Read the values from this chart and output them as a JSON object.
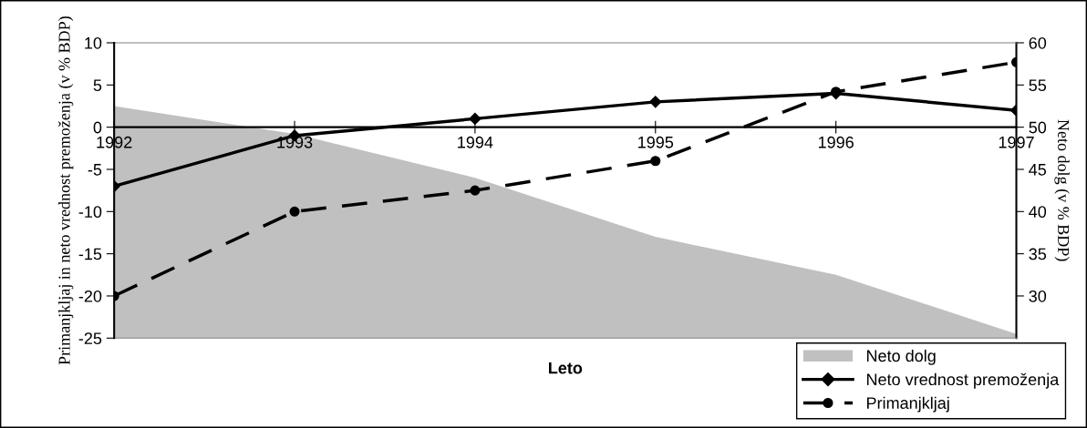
{
  "chart_data": {
    "type": "line",
    "xlabel": "Leto",
    "ylabel": "Primanjkljaj in neto vrednost premoženja (v % BDP)",
    "y2label": "Neto dolg (v % BDP)",
    "categories": [
      "1992",
      "1993",
      "1994",
      "1995",
      "1996",
      "1997"
    ],
    "series": [
      {
        "name": "Neto dolg",
        "type": "area",
        "axis": "y2",
        "color": "#c0c0c0",
        "values": [
          52.5,
          49.2,
          44,
          37,
          32.5,
          25.5
        ]
      },
      {
        "name": "Neto vrednost premoženja",
        "color": "#000000",
        "marker": "diamond",
        "line_style": "solid",
        "values": [
          -7,
          -1,
          1,
          3,
          4,
          2
        ]
      },
      {
        "name": "Primanjkljaj",
        "color": "#000000",
        "marker": "circle",
        "line_style": "dashed",
        "values": [
          -20,
          -10,
          -7.5,
          -4,
          4.2,
          7.7
        ]
      }
    ],
    "ylim": [
      -25,
      10
    ],
    "yticks": [
      -25,
      -20,
      -15,
      -10,
      -5,
      0,
      5,
      10
    ],
    "y2lim": [
      25,
      60
    ],
    "y2ticks": [
      30,
      35,
      40,
      45,
      50,
      55,
      60
    ],
    "grid": false,
    "legend": "bottom right"
  }
}
